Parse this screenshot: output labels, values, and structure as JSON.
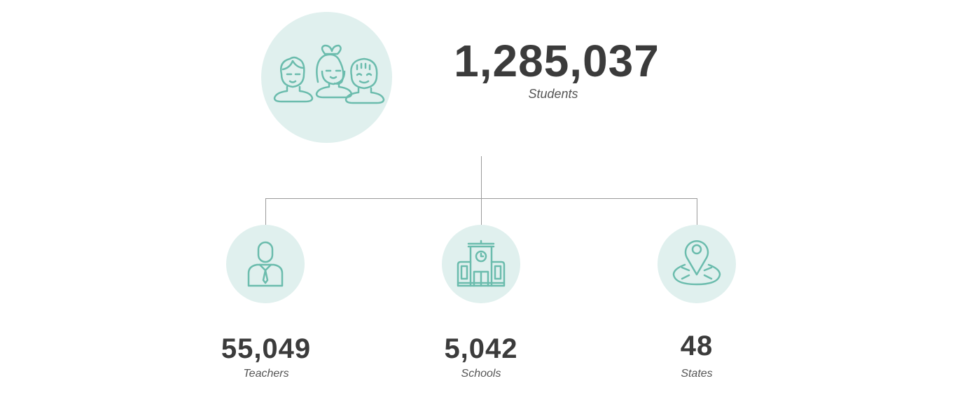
{
  "main": {
    "count": "1,285,037",
    "label": "Students",
    "icon": "students-icon"
  },
  "stats": [
    {
      "count": "55,049",
      "label": "Teachers",
      "icon": "teacher-icon"
    },
    {
      "count": "5,042",
      "label": "Schools",
      "icon": "school-icon"
    },
    {
      "count": "48",
      "label": "States",
      "icon": "map-pin-icon"
    }
  ],
  "colors": {
    "accent": "#6bbcad",
    "circle": "#e0f0ee",
    "text": "#3b3b3b"
  }
}
